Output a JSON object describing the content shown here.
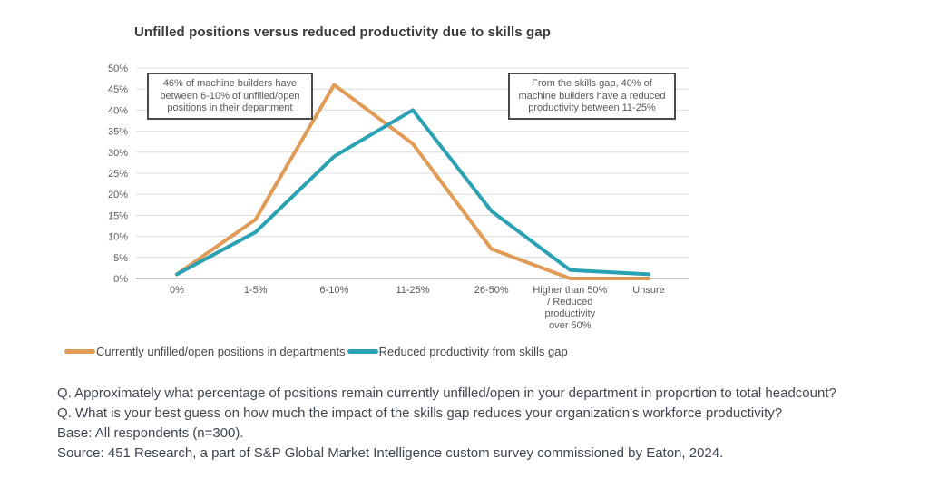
{
  "chart_data": {
    "type": "line",
    "title": "Unfilled positions versus reduced productivity due to skills gap",
    "categories": [
      "0%",
      "1-5%",
      "6-10%",
      "11-25%",
      "26-50%",
      "Higher than 50% / Reduced productivity over 50%",
      "Unsure"
    ],
    "x_tick_lines": [
      [
        "0%"
      ],
      [
        "1-5%"
      ],
      [
        "6-10%"
      ],
      [
        "11-25%"
      ],
      [
        "26-50%"
      ],
      [
        "Higher than 50%",
        "/ Reduced",
        "productivity",
        "over 50%"
      ],
      [
        "Unsure"
      ]
    ],
    "series": [
      {
        "name": "Currently unfilled/open positions in departments",
        "color": "#E09B57",
        "values": [
          1,
          14,
          46,
          32,
          7,
          0,
          0
        ]
      },
      {
        "name": "Reduced productivity from skills gap",
        "color": "#2AA2B4",
        "values": [
          1,
          11,
          29,
          40,
          16,
          2,
          1
        ]
      }
    ],
    "ylim": [
      0,
      50
    ],
    "y_ticks": [
      {
        "value": 0,
        "label": "0%"
      },
      {
        "value": 5,
        "label": "5%"
      },
      {
        "value": 10,
        "label": "10%"
      },
      {
        "value": 15,
        "label": "15%"
      },
      {
        "value": 20,
        "label": "20%"
      },
      {
        "value": 25,
        "label": "25%"
      },
      {
        "value": 30,
        "label": "30%"
      },
      {
        "value": 35,
        "label": "35%"
      },
      {
        "value": 40,
        "label": "40%"
      },
      {
        "value": 45,
        "label": "45%"
      },
      {
        "value": 50,
        "label": "50%"
      }
    ],
    "grid": "horizontal",
    "grid_color": "#dcdcdc",
    "axis_color": "#b0b0b0",
    "tick_color": "#595959",
    "legend_position": "bottom-left",
    "annotations": [
      {
        "text": "46% of machine builders have between 6-10% of unfilled/open positions in their department",
        "position": "top-left"
      },
      {
        "text": "From the skills gap, 40% of machine builders have a reduced productivity between 11-25%",
        "position": "top-right"
      }
    ]
  },
  "footer": {
    "lines": [
      "Q. Approximately what percentage of positions remain currently unfilled/open in your department in proportion to total headcount?",
      "Q. What is your best guess on how much the impact of the skills gap reduces your organization's workforce productivity?",
      "Base: All respondents (n=300).",
      "Source: 451 Research, a part of S&P Global Market Intelligence custom survey commissioned by Eaton, 2024."
    ]
  }
}
